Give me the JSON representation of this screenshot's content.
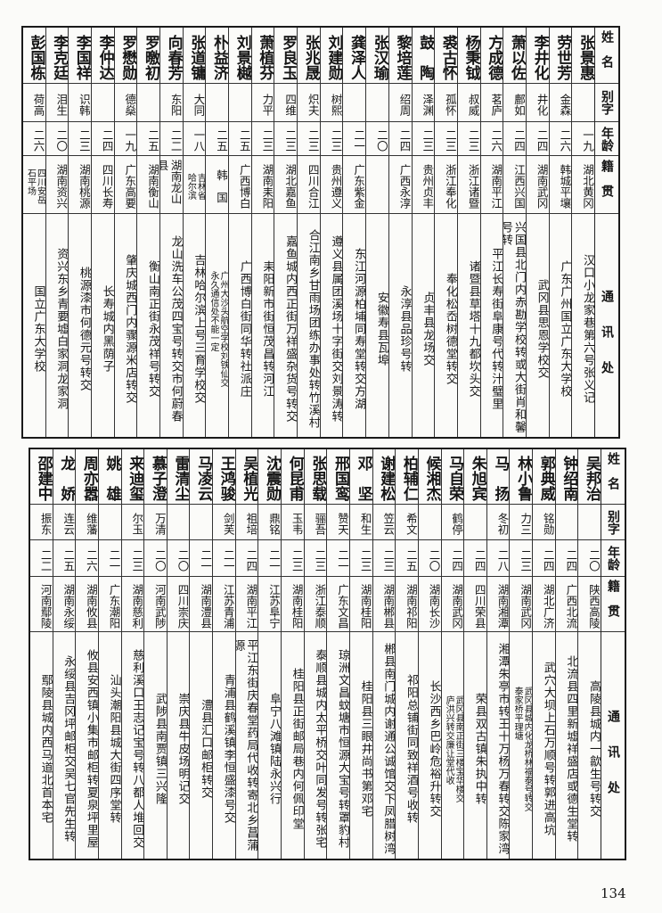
{
  "headers": [
    "姓名",
    "别字",
    "年龄",
    "籍贯",
    "通讯处"
  ],
  "top_table": [
    [
      "张景惠",
      "",
      "一九",
      "湖北黄冈",
      "汉口小龙家巷第六号张义记"
    ],
    [
      "劳世芳",
      "金森",
      "二六",
      "韩城平壤",
      "广东广州国立广东大学校"
    ],
    [
      "李井化",
      "井化",
      "二四",
      "湖南武冈",
      "武冈县思恩学校交"
    ],
    [
      "萧以佐",
      "鄜如",
      "二四",
      "江西兴国",
      "兴国县北门内赤勘学校转或大街肖和馨号转"
    ],
    [
      "方成德",
      "茗庐",
      "二六",
      "湖南平江",
      "平江长寿街阜康号代转汁璧里"
    ],
    [
      "杨秉钺",
      "叔威",
      "二三",
      "浙江诸暨",
      "诸暨县草塔十九都坎头交"
    ],
    [
      "裘古怀",
      "孤怀",
      "二三",
      "浙江奉化",
      "奉化松岙树德堂转交"
    ],
    [
      "鼓　陶",
      "泽渊",
      "二三",
      "贵州贞丰",
      "贞丰县龙场交"
    ],
    [
      "黎培莲",
      "绍周",
      "二四",
      "广西永淳",
      "永淳县品珍号转"
    ],
    [
      "张汉瑜",
      "",
      "二〇",
      "",
      "安徽寿县瓦埠"
    ],
    [
      "龚泽人",
      "",
      "二一",
      "广东紫金",
      "东江河源柏埔同寿堂转交方湖"
    ],
    [
      "刘建勋",
      "树熙",
      "二三",
      "贵州遵义",
      "遵义县属团溪场十字街交刘景涛转"
    ],
    [
      "张兆晟",
      "炽夫",
      "二三",
      "四川合江",
      "合江南乡甘雨场团练办事处转竹溪村"
    ],
    [
      "罗良玉",
      "四维",
      "二三",
      "湖北嘉鱼",
      "嘉鱼城内西正街万祥盛杂货号转交"
    ],
    [
      "萧植芬",
      "力平",
      "二三",
      "湖南耒阳",
      "耒阳新市街恒茂昌转河江"
    ],
    [
      "刘景樾",
      "",
      "二五",
      "广西博白",
      "广西博白街同华转社派庄"
    ],
    [
      "朴益济",
      "",
      "二五",
      "韩　国",
      "广州大沙头航空学校刘铁仙交\n永久通信处不能一定"
    ],
    [
      "张道镛",
      "大同",
      "一八",
      "吉林省\n哈尔滨",
      "吉林哈尔滨上号三育学校交"
    ],
    [
      "向春芳",
      "东阳",
      "二二",
      "湖南龙山县",
      "龙山洗车公茂四宝号转交市何蔚春"
    ],
    [
      "罗曒初",
      "",
      "二五",
      "湖南衡山",
      "衡山南正街永茂祥号转交"
    ],
    [
      "罗懋勋",
      "德燊",
      "一九",
      "广东高要",
      "肇庆城西门内骤源米店转交"
    ],
    [
      "李仲达",
      "",
      "二四",
      "四川长寿",
      "长寿城内黑荫子"
    ],
    [
      "李国祥",
      "识韩",
      "二三",
      "湖南桃源",
      "桃源漆市何德元号转交"
    ],
    [
      "李克廷",
      "泪生",
      "二〇",
      "湖南资兴",
      "资兴东乡青要墟白家洞龙家洞"
    ],
    [
      "彭国栋",
      "荷高",
      "二六",
      "四川安岳\n石平场",
      "国立广东大学校"
    ]
  ],
  "bottom_table": [
    [
      "吴邦治",
      "",
      "二〇",
      "陕西高陵",
      "高陵县城内一歙生号转交"
    ],
    [
      "钟绍南",
      "",
      "二四",
      "广西北流",
      "北流县四里新墟祥盛店或德生堂转"
    ],
    [
      "郭典威",
      "铭勋",
      "二四",
      "湖北广济",
      "武穴大坝上石万顺号转郭进高坑"
    ],
    [
      "林小鲁",
      "力三",
      "二三",
      "湖南武冈",
      "武冈县城内化龙桥林福泰号转交\n泰家桥平理塘"
    ],
    [
      "马　扬",
      "冬初",
      "二八",
      "湖南湘潭",
      "湘潭朱亭市转王十万杨万春转交陈家湾"
    ],
    [
      "朱旭宾",
      "",
      "二四",
      "四川荣县",
      "荣县双古镇朱执中转"
    ],
    [
      "马自荣",
      "鹤停",
      "二四",
      "湖南武冈",
      "武冈县南正街三楼宝华楼交\n庐洪兴转交廉让堂代收"
    ],
    [
      "候湘杰",
      "",
      "二〇",
      "湖南长沙",
      "长沙西乡巴岭危裕升转交"
    ],
    [
      "柏辅仁",
      "希文",
      "二五",
      "湖南祁阳",
      "祁阳总铺街同致祥酒号收转"
    ],
    [
      "谢建松",
      "笠云",
      "二三",
      "湖南郴县",
      "郴县南门城内谢通公诚馆交下凤腊树湾"
    ],
    [
      "邓　坚",
      "和生",
      "二三",
      "湖南桂阳",
      "桂阳县三眼井尚书第邓宅"
    ],
    [
      "邢国鸾",
      "赞天",
      "二一",
      "广东文昌",
      "琼洲文昌蚊塘市恒源大宝号转罩豹村"
    ],
    [
      "张思载",
      "骊吾",
      "二三",
      "浙江泰顺",
      "泰顺县城内太平桥交叶同发号转张宅"
    ],
    [
      "何昆甫",
      "玉韦",
      "二三",
      "湖南桂阳",
      "桂阳县正街邮局巷内何佩印堂"
    ],
    [
      "沈震勋",
      "鼎铭",
      "二一",
      "江苏阜宁",
      "阜宁八滩镇陆永兴行"
    ],
    [
      "吴植光",
      "祖培",
      "二四",
      "湖南平江",
      "平江东街庆春堂药局代收转寄北乡菖蒲源"
    ],
    [
      "王鸿骏",
      "剑芙",
      "二一",
      "江苏青浦",
      "青浦县鹤溪镇李恒盛漆号交"
    ],
    [
      "马凌云",
      "",
      "二一",
      "湖南澧县",
      "澧县汇口邮柜转交"
    ],
    [
      "雷清尘",
      "",
      "二〇",
      "四川崇庆",
      "崇庆县牛皮场明记交"
    ],
    [
      "慕子澄",
      "万清",
      "二〇",
      "河南武陟",
      "武陟县南贾镇三兴隆"
    ],
    [
      "来迪玺",
      "尔玉",
      "二三",
      "湖南慈利",
      "慈利溪口王志记宝号转八都人堆回交"
    ],
    [
      "姚　雄",
      "",
      "二一",
      "广东潮阳",
      "汕头潮阳县城大街四序堂转"
    ],
    [
      "周亦嚣",
      "维藩",
      "二六",
      "湖南攸县",
      "攸县安西镇小集市邮柜转夏泉坪里屋"
    ],
    [
      "龙　娇",
      "连云",
      "二五",
      "湖南永绥",
      "永绥县吉冈坪邮柜交吴七官先生转"
    ],
    [
      "邵建中",
      "振东",
      "二二",
      "河南鄢陵",
      "鄢陵县城内西马道北首本宅"
    ]
  ],
  "page_number": "134"
}
